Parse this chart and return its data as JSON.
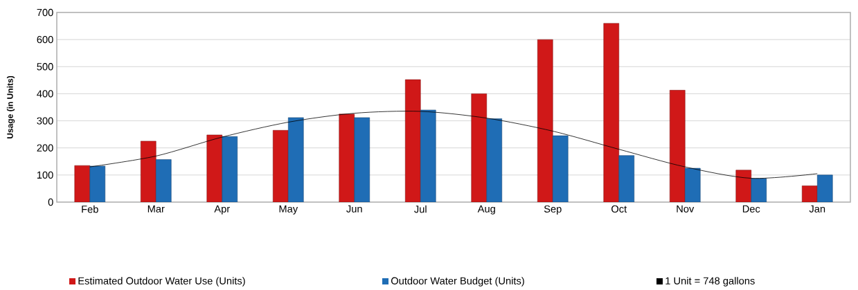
{
  "chart_data": {
    "type": "bar",
    "ylabel": "**Usage (in Units)**",
    "categories": [
      "Feb",
      "Mar",
      "Apr",
      "May",
      "Jun",
      "Jul",
      "Aug",
      "Sep",
      "Oct",
      "Nov",
      "Dec",
      "Jan"
    ],
    "series": [
      {
        "name": "Estimated Outdoor Water Use (Units)",
        "color": "#d01818",
        "values": [
          135,
          225,
          248,
          265,
          325,
          452,
          400,
          600,
          660,
          413,
          118,
          60
        ]
      },
      {
        "name": "Outdoor Water Budget (Units)",
        "color": "#1f6db5",
        "values": [
          133,
          157,
          242,
          312,
          312,
          340,
          308,
          245,
          172,
          125,
          87,
          100
        ]
      },
      {
        "name": "1 Unit = 748 gallons",
        "type": "line",
        "color": "#000000",
        "values": [
          130,
          170,
          240,
          295,
          328,
          335,
          310,
          262,
          195,
          130,
          88,
          105
        ]
      }
    ],
    "ylim": [
      0,
      700
    ],
    "yticks": [
      0,
      100,
      200,
      300,
      400,
      500,
      600,
      700
    ],
    "grid": "y",
    "legend": "bottom"
  }
}
